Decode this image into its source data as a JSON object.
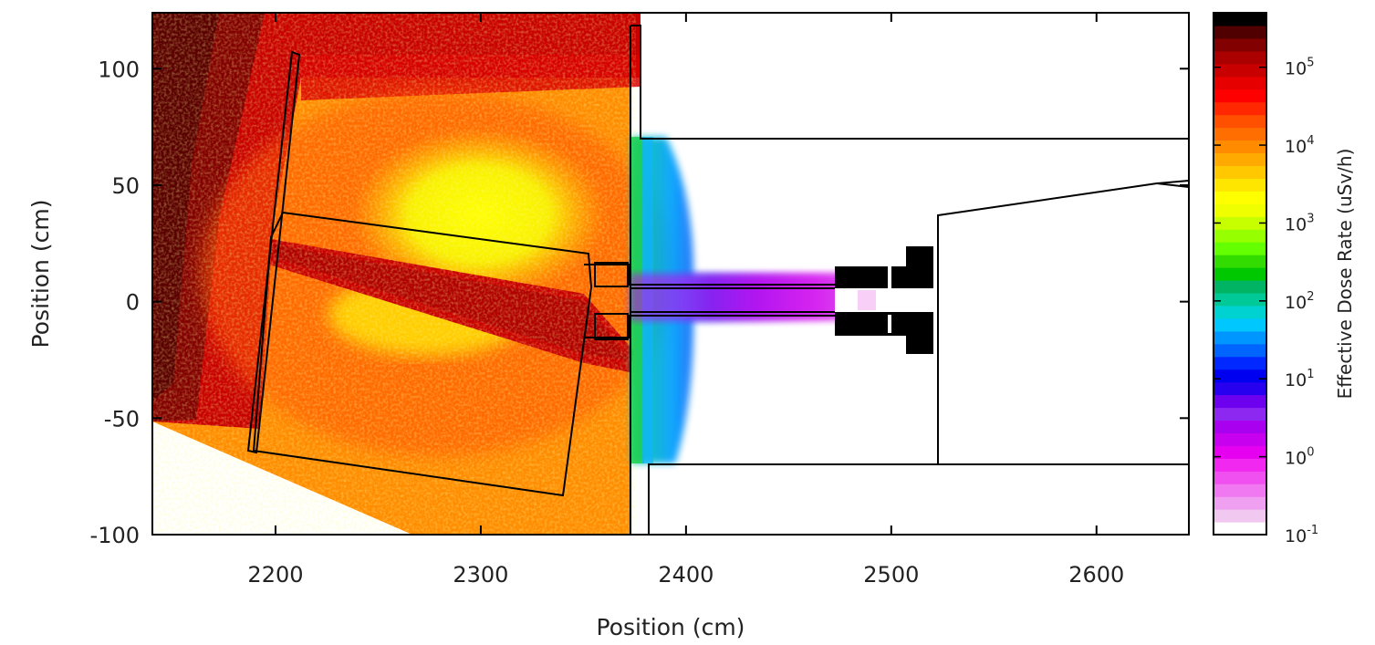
{
  "chart_data": {
    "type": "heatmap",
    "xlabel": "Position (cm)",
    "ylabel": "Position (cm)",
    "xlim": [
      2140,
      2645
    ],
    "ylim": [
      -100,
      124
    ],
    "x_ticks": [
      2200,
      2300,
      2400,
      2500,
      2600
    ],
    "y_ticks": [
      100,
      50,
      0,
      -50,
      -100
    ],
    "grid": false,
    "colorbar": {
      "title": "Effective Dose Rate (uSv/h)",
      "scale": "log",
      "range": [
        0.1,
        500000
      ],
      "tick_values": [
        0.1,
        1,
        10,
        100,
        1000,
        10000,
        100000
      ],
      "tick_labels": [
        {
          "base": "10",
          "exp": "-1"
        },
        {
          "base": "10",
          "exp": "0"
        },
        {
          "base": "10",
          "exp": "1"
        },
        {
          "base": "10",
          "exp": "2"
        },
        {
          "base": "10",
          "exp": "3"
        },
        {
          "base": "10",
          "exp": "4"
        },
        {
          "base": "10",
          "exp": "5"
        }
      ],
      "colors": [
        "#ffffff",
        "#f0c8f0",
        "#f0a0f0",
        "#f078f0",
        "#f050f0",
        "#f028f0",
        "#e600f0",
        "#c800f0",
        "#aa00f0",
        "#8c28f0",
        "#6e00f0",
        "#2800f0",
        "#0000f0",
        "#0028ff",
        "#0064ff",
        "#0096ff",
        "#00c8ff",
        "#00d2d2",
        "#00c896",
        "#00b464",
        "#00c800",
        "#32dc00",
        "#64ff00",
        "#96ff00",
        "#c8ff00",
        "#f0ff00",
        "#ffff00",
        "#ffe600",
        "#ffc800",
        "#ffaa00",
        "#ff8c00",
        "#ff6e00",
        "#ff5000",
        "#ff2800",
        "#ff0000",
        "#e60000",
        "#c80000",
        "#aa0000",
        "#820000",
        "#500000",
        "#000000"
      ]
    },
    "dose_field_samples": [
      {
        "x": 2160,
        "y": 100,
        "dose_uSv_h": 400000
      },
      {
        "x": 2240,
        "y": 110,
        "dose_uSv_h": 100000
      },
      {
        "x": 2260,
        "y": 60,
        "dose_uSv_h": 30000
      },
      {
        "x": 2320,
        "y": 50,
        "dose_uSv_h": 6000
      },
      {
        "x": 2300,
        "y": 5,
        "dose_uSv_h": 100000
      },
      {
        "x": 2300,
        "y": -40,
        "dose_uSv_h": 30000
      },
      {
        "x": 2365,
        "y": 0,
        "dose_uSv_h": 3000
      },
      {
        "x": 2380,
        "y": 0,
        "dose_uSv_h": 100
      },
      {
        "x": 2390,
        "y": 30,
        "dose_uSv_h": 10
      },
      {
        "x": 2440,
        "y": 0,
        "dose_uSv_h": 1
      },
      {
        "x": 2600,
        "y": 0,
        "dose_uSv_h": 0.1
      }
    ]
  }
}
